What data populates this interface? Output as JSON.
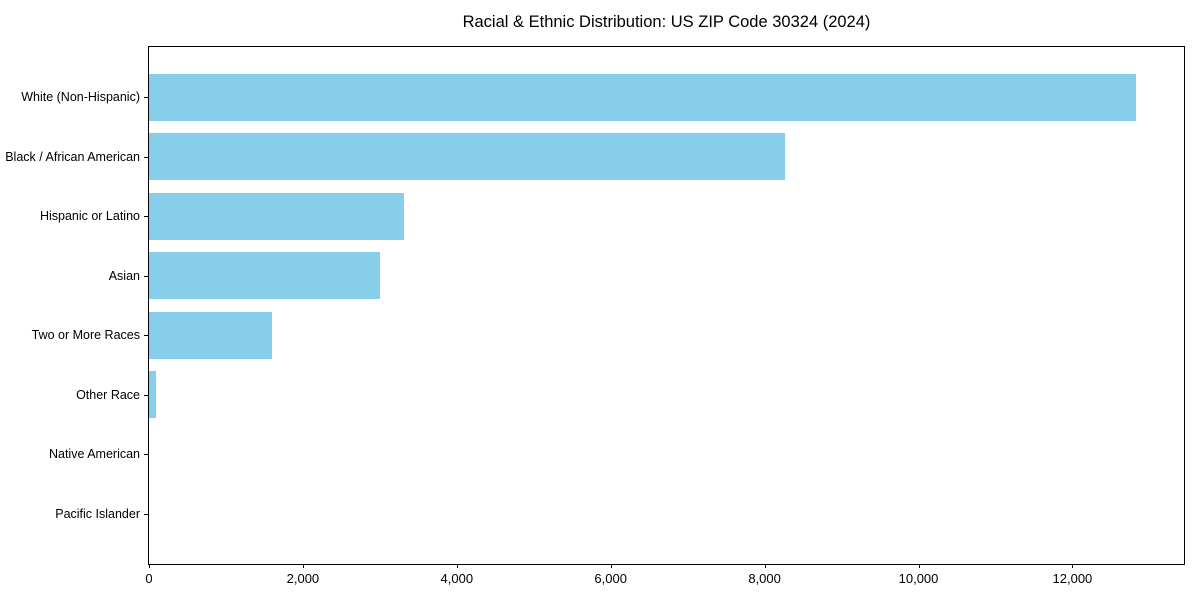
{
  "chart_data": {
    "type": "bar",
    "orientation": "horizontal",
    "title": "Racial & Ethnic Distribution: US ZIP Code 30324 (2024)",
    "categories": [
      "White (Non-Hispanic)",
      "Black / African American",
      "Hispanic or Latino",
      "Asian",
      "Two or More Races",
      "Other Race",
      "Native American",
      "Pacific Islander"
    ],
    "values": [
      12820,
      8260,
      3310,
      3000,
      1600,
      90,
      0,
      0
    ],
    "xlabel": "",
    "ylabel": "",
    "xlim": [
      0,
      13450
    ],
    "x_ticks": [
      0,
      2000,
      4000,
      6000,
      8000,
      10000,
      12000
    ],
    "x_tick_labels": [
      "0",
      "2,000",
      "4,000",
      "6,000",
      "8,000",
      "10,000",
      "12,000"
    ],
    "grid": false,
    "legend": null,
    "colors": {
      "bar": "#87CEEB",
      "text": "#000000",
      "axis_border": "#000000",
      "background": "#ffffff"
    }
  }
}
